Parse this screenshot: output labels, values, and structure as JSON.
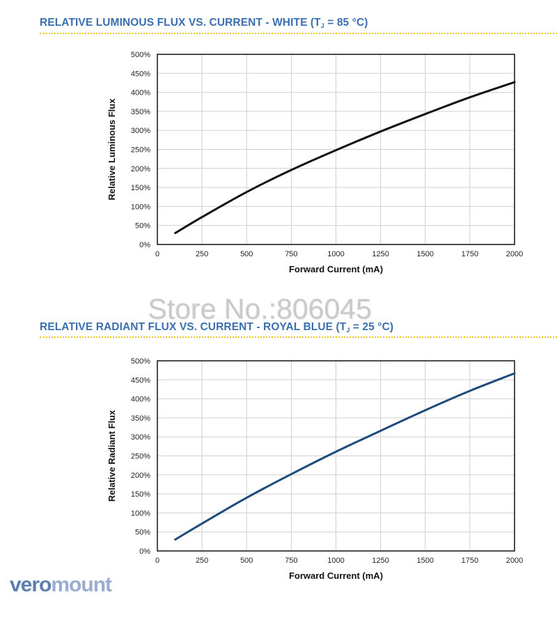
{
  "chart_data": [
    {
      "type": "line",
      "title_main": "RELATIVE LUMINOUS FLUX VS. CURRENT - WHITE (T",
      "title_sub": "J",
      "title_tail": " = 85 °C)",
      "xlabel": "Forward Current (mA)",
      "ylabel": "Relative Luminous Flux",
      "xlim": [
        0,
        2000
      ],
      "ylim": [
        0,
        500
      ],
      "xticks": [
        "0",
        "250",
        "500",
        "750",
        "1000",
        "1250",
        "1500",
        "1750",
        "2000"
      ],
      "yticks": [
        "0%",
        "50%",
        "100%",
        "150%",
        "200%",
        "250%",
        "300%",
        "350%",
        "400%",
        "450%",
        "500%"
      ],
      "grid": true,
      "color": "#111111",
      "series": [
        {
          "x": [
            100,
            250,
            500,
            750,
            1000,
            1250,
            1500,
            1750,
            2000
          ],
          "y": [
            30,
            72,
            138,
            196,
            248,
            297,
            343,
            387,
            427
          ]
        }
      ]
    },
    {
      "type": "line",
      "title_main": "RELATIVE RADIANT FLUX VS. CURRENT - ROYAL BLUE (T",
      "title_sub": "J",
      "title_tail": " = 25 °C)",
      "xlabel": "Forward Current (mA)",
      "ylabel": "Relative Radiant Flux",
      "xlim": [
        0,
        2000
      ],
      "ylim": [
        0,
        500
      ],
      "xticks": [
        "0",
        "250",
        "500",
        "750",
        "1000",
        "1250",
        "1500",
        "1750",
        "2000"
      ],
      "yticks": [
        "0%",
        "50%",
        "100%",
        "150%",
        "200%",
        "250%",
        "300%",
        "350%",
        "400%",
        "450%",
        "500%"
      ],
      "grid": true,
      "color": "#1f4a7c",
      "series": [
        {
          "x": [
            100,
            250,
            500,
            750,
            1000,
            1250,
            1500,
            1750,
            2000
          ],
          "y": [
            30,
            72,
            140,
            202,
            261,
            316,
            370,
            421,
            467
          ]
        }
      ]
    }
  ],
  "watermark": "Store No.:806045",
  "brand": {
    "part1": "vero",
    "part2": "mount"
  },
  "colors": {
    "title": "#3a6fb0",
    "divider": "#f2c51d",
    "grid": "#cfcfcf"
  }
}
